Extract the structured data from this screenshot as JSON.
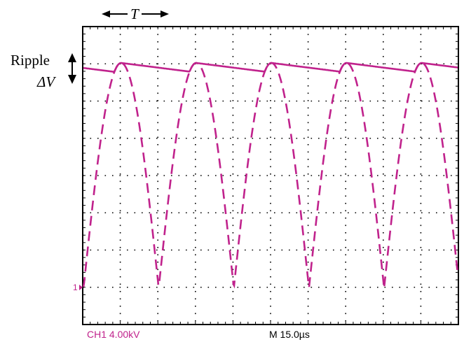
{
  "annotations": {
    "period_symbol": "T",
    "ripple_label": "Ripple",
    "delta_v_label": "ΔV"
  },
  "scope": {
    "channel_marker": "1",
    "channel_readout": "CH1  4.00kV",
    "timebase_readout": "M  15.0µs"
  },
  "colors": {
    "trace": "#c0228c",
    "grid": "#000000",
    "annotation": "#000000"
  },
  "icons": {
    "period_arrow": "double-headed-horizontal-arrow",
    "ripple_arrow": "double-headed-vertical-arrow"
  }
}
